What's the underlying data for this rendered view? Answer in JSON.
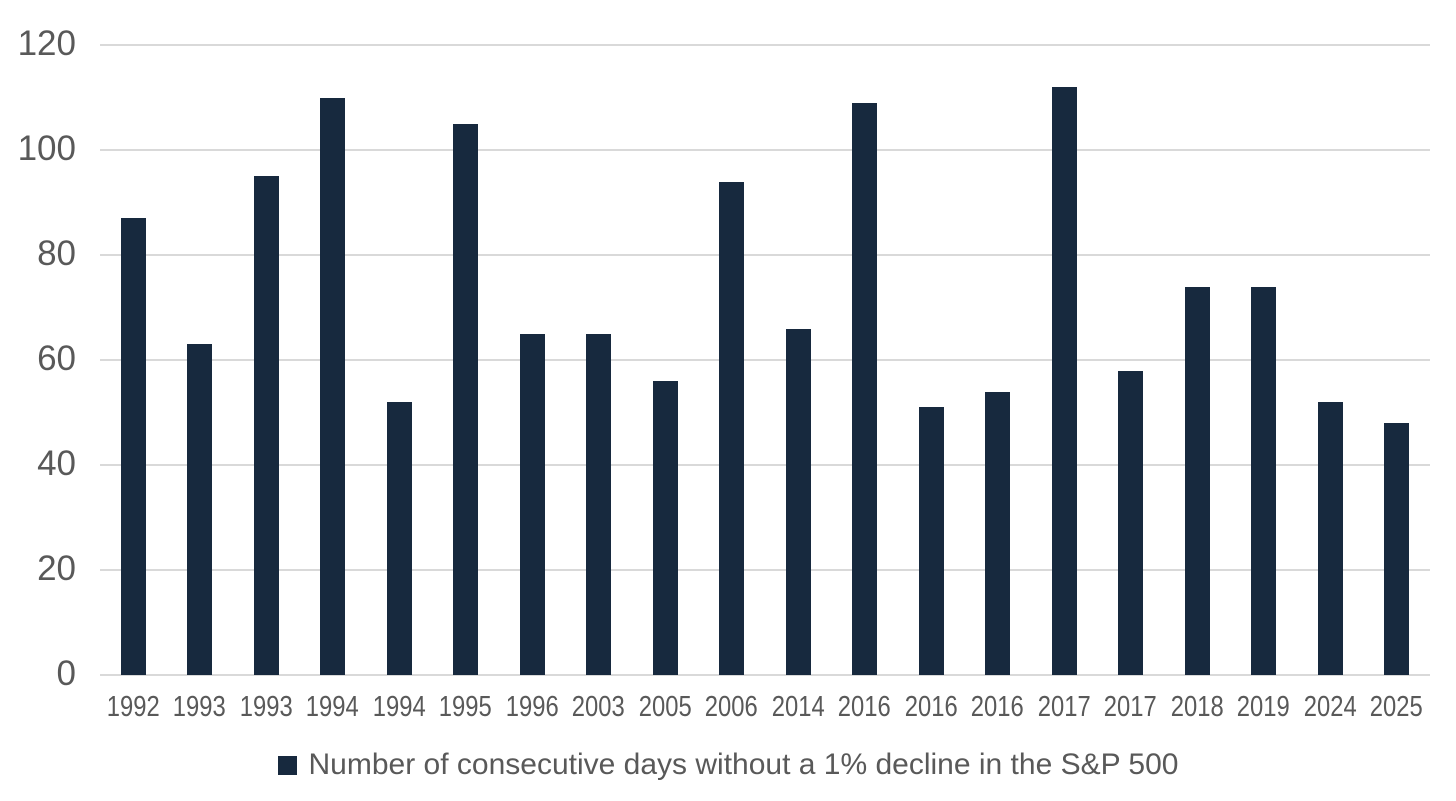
{
  "chart_data": {
    "type": "bar",
    "title": "",
    "xlabel": "",
    "ylabel": "",
    "categories": [
      "1992",
      "1993",
      "1993",
      "1994",
      "1994",
      "1995",
      "1996",
      "2003",
      "2005",
      "2006",
      "2014",
      "2016",
      "2016",
      "2016",
      "2017",
      "2017",
      "2018",
      "2019",
      "2024",
      "2025"
    ],
    "values": [
      87,
      63,
      95,
      110,
      52,
      105,
      65,
      65,
      56,
      94,
      66,
      109,
      51,
      54,
      112,
      58,
      74,
      74,
      52,
      48
    ],
    "ylim": [
      0,
      120
    ],
    "yticks": [
      0,
      20,
      40,
      60,
      80,
      100,
      120
    ],
    "grid": true,
    "legend_position": "bottom",
    "legend": "Number of consecutive days without a 1% decline in the S&P 500",
    "colors": {
      "bar": "#17293e",
      "gridline": "#d9d9d9",
      "axis_text": "#595959",
      "legend_text": "#595959",
      "background": "#ffffff"
    }
  }
}
